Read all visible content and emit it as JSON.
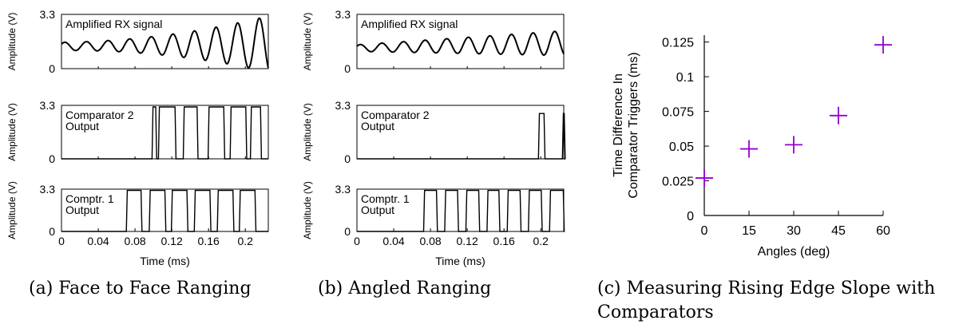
{
  "captions": {
    "a": "(a) Face to Face Ranging",
    "b": "(b) Angled Ranging",
    "c_line1": "(c) Measuring Rising Edge Slope with",
    "c_line2": "Comparators"
  },
  "chart_data": [
    {
      "id": "a",
      "type": "line",
      "panels": [
        {
          "label": "Amplified RX signal",
          "ylabel": "Amplitude (V)",
          "yticks": [
            "0",
            "3.3"
          ],
          "ylim": [
            0,
            3.3
          ],
          "signal": "sinusoid",
          "x": [
            0.0,
            0.02,
            0.04,
            0.06,
            0.08,
            0.1,
            0.12,
            0.14,
            0.16,
            0.18,
            0.2,
            0.22
          ],
          "y": [
            1.2,
            1.4,
            1.1,
            1.5,
            1.0,
            1.8,
            0.8,
            2.6,
            0.3,
            3.1,
            0.1,
            2.2
          ]
        },
        {
          "label": "Comparator 2",
          "label2": "Output",
          "ylabel": "Amplitude (V)",
          "yticks": [
            "0",
            "3.3"
          ],
          "ylim": [
            0,
            3.3
          ],
          "signal": "pulses",
          "high": 3.2,
          "pulses": [
            [
              0.0985,
              0.1025
            ],
            [
              0.1055,
              0.1235
            ],
            [
              0.1325,
              0.1475
            ],
            [
              0.1595,
              0.1765
            ],
            [
              0.1835,
              0.2005
            ],
            [
              0.2055,
              0.2165
            ]
          ],
          "y_high": 3.2
        },
        {
          "label": "Comptr. 1",
          "label2": "Output",
          "ylabel": "Amplitude (V)",
          "yticks": [
            "0",
            "3.3"
          ],
          "ylim": [
            0,
            3.3
          ],
          "signal": "pulses",
          "high": 3.2,
          "pulses": [
            [
              0.0705,
              0.0865
            ],
            [
              0.0955,
              0.1125
            ],
            [
              0.1195,
              0.1365
            ],
            [
              0.1445,
              0.1615
            ],
            [
              0.1695,
              0.1865
            ],
            [
              0.1935,
              0.2105
            ]
          ]
        }
      ],
      "xlabel": "Time (ms)",
      "xticks": [
        "0",
        "0.04",
        "0.08",
        "0.12",
        "0.16",
        "0.2"
      ],
      "xtick_values": [
        0,
        0.04,
        0.08,
        0.12,
        0.16,
        0.2
      ],
      "xlim": [
        0,
        0.225
      ]
    },
    {
      "id": "b",
      "type": "line",
      "panels": [
        {
          "label": "Amplified RX signal",
          "ylabel": "Amplitude (V)",
          "yticks": [
            "0",
            "3.3"
          ],
          "ylim": [
            0,
            3.3
          ],
          "signal": "sinusoid",
          "x": [
            0.0,
            0.02,
            0.04,
            0.06,
            0.08,
            0.1,
            0.12,
            0.14,
            0.16,
            0.18,
            0.2,
            0.22
          ],
          "y": [
            1.2,
            1.3,
            1.1,
            1.4,
            1.1,
            1.5,
            1.0,
            1.7,
            0.9,
            1.9,
            0.8,
            2.2
          ]
        },
        {
          "label": "Comparator 2",
          "label2": "Output",
          "ylabel": "Amplitude (V)",
          "yticks": [
            "0",
            "3.3"
          ],
          "ylim": [
            0,
            3.3
          ],
          "signal": "pulses",
          "high": 2.8,
          "pulses": [
            [
              0.1975,
              0.2035
            ],
            [
              0.2235,
              0.2255
            ]
          ]
        },
        {
          "label": "Comptr. 1",
          "label2": "Output",
          "ylabel": "Amplitude (V)",
          "yticks": [
            "0",
            "3.3"
          ],
          "ylim": [
            0,
            3.3
          ],
          "signal": "pulses",
          "high": 3.2,
          "pulses": [
            [
              0.0725,
              0.0865
            ],
            [
              0.0955,
              0.1095
            ],
            [
              0.1185,
              0.1325
            ],
            [
              0.1415,
              0.1545
            ],
            [
              0.1635,
              0.1775
            ],
            [
              0.1865,
              0.2005
            ],
            [
              0.2095,
              0.2245
            ]
          ]
        }
      ],
      "xlabel": "Time (ms)",
      "xticks": [
        "0",
        "0.04",
        "0.08",
        "0.12",
        "0.16",
        "0.2"
      ],
      "xtick_values": [
        0,
        0.04,
        0.08,
        0.12,
        0.16,
        0.2
      ],
      "xlim": [
        0,
        0.225
      ]
    },
    {
      "id": "c",
      "type": "scatter",
      "x": [
        0,
        15,
        30,
        45,
        60
      ],
      "y": [
        0.027,
        0.048,
        0.051,
        0.072,
        0.123
      ],
      "xticks": [
        "0",
        "15",
        "30",
        "45",
        "60"
      ],
      "yticks": [
        "0",
        "0.025",
        "0.05",
        "0.075",
        "0.1",
        "0.125"
      ],
      "ytick_values": [
        0,
        0.025,
        0.05,
        0.075,
        0.1,
        0.125
      ],
      "xlim": [
        0,
        60
      ],
      "ylim": [
        0,
        0.13
      ],
      "xlabel": "Angles (deg)",
      "ylabel_line1": "Time Difference In",
      "ylabel_line2": "Comparator Triggers (ms)",
      "marker": "plus",
      "marker_color": "#9400d3"
    }
  ]
}
